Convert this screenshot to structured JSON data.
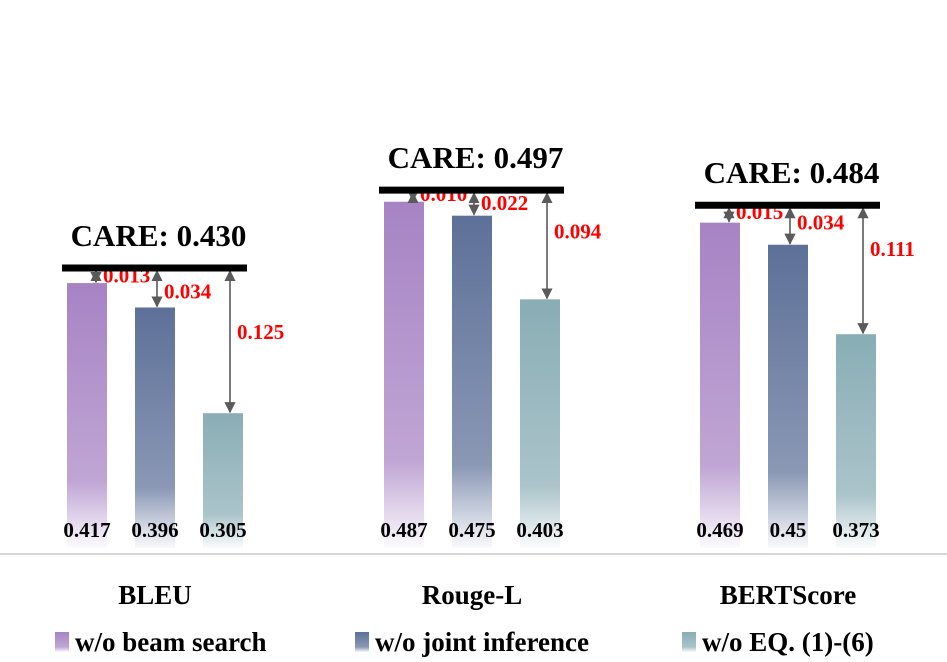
{
  "chart_data": {
    "type": "bar",
    "categories": [
      "BLEU",
      "Rouge-L",
      "BERTScore"
    ],
    "series": [
      {
        "name": "w/o beam search",
        "values": [
          0.417,
          0.487,
          0.469
        ],
        "color": "#a783c4"
      },
      {
        "name": "w/o joint inference",
        "values": [
          0.396,
          0.475,
          0.45
        ],
        "color": "#5d7098"
      },
      {
        "name": "w/o EQ. (1)-(6)",
        "values": [
          0.305,
          0.403,
          0.373
        ],
        "color": "#89adb5"
      }
    ],
    "value_labels": [
      [
        "0.417",
        "0.396",
        "0.305"
      ],
      [
        "0.487",
        "0.475",
        "0.403"
      ],
      [
        "0.469",
        "0.45",
        "0.373"
      ]
    ],
    "reference": {
      "name": "CARE",
      "values": [
        0.43,
        0.497,
        0.484
      ],
      "labels": [
        "CARE: 0.430",
        "CARE: 0.497",
        "CARE: 0.484"
      ]
    },
    "differences": [
      [
        "0.013",
        "0.034",
        "0.125"
      ],
      [
        "0.010",
        "0.022",
        "0.094"
      ],
      [
        "0.015",
        "0.034",
        "0.111"
      ]
    ],
    "diff_color": "#ff0000",
    "legend_position": "bottom",
    "ylim": [
      0.22,
      0.5
    ]
  }
}
